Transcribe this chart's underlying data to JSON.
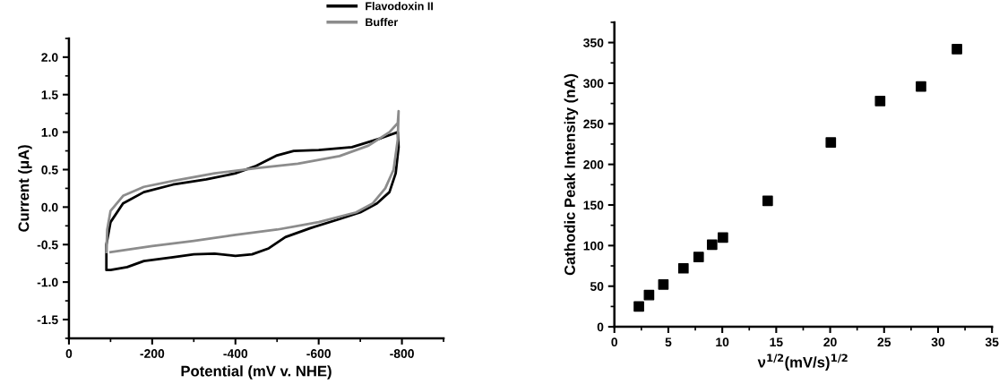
{
  "chart_data": [
    {
      "type": "line",
      "xlabel": "Potential (mV v. NHE)",
      "ylabel": "Current (μA)",
      "xlim": [
        0,
        -900
      ],
      "xticks": [
        0,
        -200,
        -400,
        -600,
        -800
      ],
      "ylim": [
        -1.75,
        2.25
      ],
      "yticks": [
        {
          "value": -1.5,
          "label": "-1.5"
        },
        {
          "value": -1.0,
          "label": "-1.0"
        },
        {
          "value": -0.5,
          "label": "-0.5"
        },
        {
          "value": 0.0,
          "label": "0.0"
        },
        {
          "value": 0.5,
          "label": "0.5"
        },
        {
          "value": 1.0,
          "label": "1.0"
        },
        {
          "value": 1.5,
          "label": "1.5"
        },
        {
          "value": 2.0,
          "label": "2.0"
        }
      ],
      "grid": false,
      "legend": "top right",
      "marker": "none",
      "line_style": "solid",
      "series": [
        {
          "name": "Flavodoxin II",
          "color": "#000000",
          "x": [
            -90,
            -90,
            -100,
            -130,
            -180,
            -250,
            -330,
            -400,
            -450,
            -500,
            -540,
            -600,
            -680,
            -750,
            -790,
            -792,
            -785,
            -770,
            -740,
            -700,
            -650,
            -580,
            -520,
            -480,
            -440,
            -400,
            -350,
            -300,
            -250,
            -180,
            -140,
            -100,
            -90,
            -90
          ],
          "values": [
            -0.83,
            -0.5,
            -0.2,
            0.05,
            0.2,
            0.3,
            0.37,
            0.45,
            0.55,
            0.69,
            0.75,
            0.76,
            0.8,
            0.92,
            1.0,
            0.8,
            0.45,
            0.2,
            0.05,
            -0.07,
            -0.16,
            -0.28,
            -0.4,
            -0.55,
            -0.63,
            -0.65,
            -0.62,
            -0.63,
            -0.67,
            -0.72,
            -0.8,
            -0.84,
            -0.84,
            -0.6
          ]
        },
        {
          "name": "Buffer",
          "color": "#8c8c8c",
          "x": [
            -90,
            -92,
            -100,
            -130,
            -180,
            -250,
            -350,
            -450,
            -550,
            -650,
            -720,
            -770,
            -790,
            -792,
            -790,
            -780,
            -760,
            -730,
            -690,
            -600,
            -500,
            -400,
            -300,
            -200,
            -100
          ],
          "values": [
            -0.6,
            -0.3,
            -0.05,
            0.15,
            0.27,
            0.35,
            0.45,
            0.52,
            0.58,
            0.68,
            0.82,
            1.0,
            1.12,
            1.28,
            0.9,
            0.5,
            0.25,
            0.05,
            -0.07,
            -0.2,
            -0.3,
            -0.37,
            -0.45,
            -0.52,
            -0.6
          ]
        }
      ]
    },
    {
      "type": "scatter",
      "xlabel": "ν$^{1/2}$(mV/s)$^{1/2}$",
      "ylabel": "Cathodic Peak Intensity (nA)",
      "xlim": [
        0,
        35
      ],
      "xticks": [
        0,
        5,
        10,
        15,
        20,
        25,
        30,
        35
      ],
      "ylim": [
        0,
        375
      ],
      "yticks": [
        0,
        50,
        100,
        150,
        200,
        250,
        300,
        350
      ],
      "grid": false,
      "legend": false,
      "marker": "square",
      "x": [
        2.27,
        3.21,
        4.54,
        6.4,
        7.81,
        9.06,
        10.06,
        14.21,
        20.06,
        24.63,
        28.42,
        31.75
      ],
      "series": [
        {
          "color": "#000000",
          "values": [
            25,
            39,
            52,
            72,
            86,
            101,
            110,
            155,
            227,
            278,
            296,
            342
          ]
        }
      ]
    }
  ]
}
